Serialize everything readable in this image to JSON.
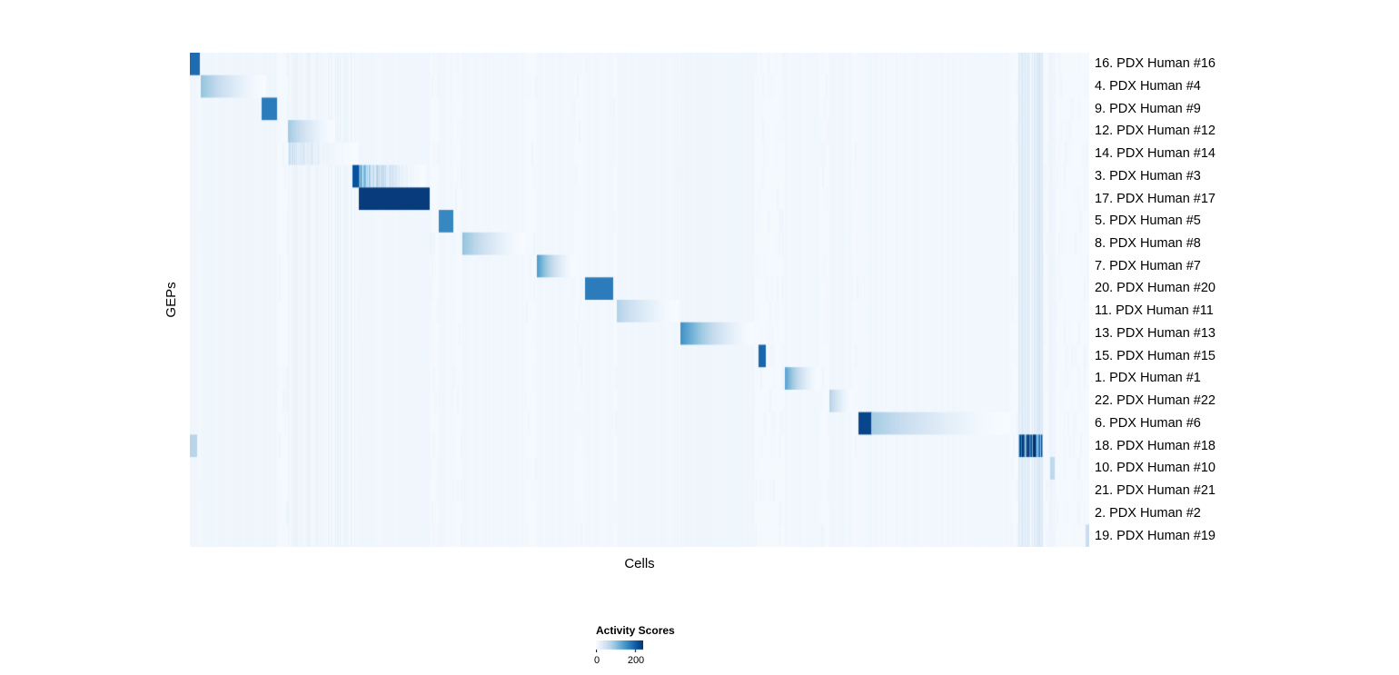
{
  "chart_data": {
    "type": "heatmap",
    "title": "",
    "xlabel": "Cells",
    "ylabel": "GEPs",
    "x_axis_note": "individual cells as columns, no per-column tick labels",
    "colormap": "Blues",
    "colormap_colors": [
      "#f7fbff",
      "#deebf7",
      "#c6dbef",
      "#9ecae1",
      "#6baed6",
      "#4292c6",
      "#2171b5",
      "#08519c",
      "#08306b"
    ],
    "legend": {
      "title": "Activity Scores",
      "color_scale_max": 240,
      "ticks": [
        {
          "value": 0,
          "label": "0"
        },
        {
          "value": 200,
          "label": "200"
        }
      ]
    },
    "rows": [
      {
        "label": "16. PDX Human #16",
        "blocks": [
          {
            "s": 0.0,
            "e": 0.011,
            "v": 185,
            "fade": false
          }
        ]
      },
      {
        "label": "4. PDX Human #4",
        "blocks": [
          {
            "s": 0.013,
            "e": 0.084,
            "v": 95,
            "fade": true
          }
        ]
      },
      {
        "label": "9. PDX Human #9",
        "blocks": [
          {
            "s": 0.08,
            "e": 0.096,
            "v": 170,
            "fade": false
          }
        ]
      },
      {
        "label": "12. PDX Human #12",
        "blocks": [
          {
            "s": 0.11,
            "e": 0.161,
            "v": 85,
            "fade": true
          }
        ]
      },
      {
        "label": "14. PDX Human #14",
        "blocks": [
          {
            "s": 0.11,
            "e": 0.186,
            "v": 45,
            "fade": true,
            "stripes": true
          }
        ]
      },
      {
        "label": "3. PDX Human #3",
        "blocks": [
          {
            "s": 0.181,
            "e": 0.187,
            "v": 210,
            "fade": false
          },
          {
            "s": 0.188,
            "e": 0.262,
            "v": 90,
            "fade": true,
            "stripes": true
          }
        ]
      },
      {
        "label": "17. PDX Human #17",
        "blocks": [
          {
            "s": 0.188,
            "e": 0.266,
            "v": 230,
            "fade": false
          }
        ]
      },
      {
        "label": "5. PDX Human #5",
        "blocks": [
          {
            "s": 0.277,
            "e": 0.292,
            "v": 160,
            "fade": false
          }
        ]
      },
      {
        "label": "8. PDX Human #8",
        "blocks": [
          {
            "s": 0.304,
            "e": 0.372,
            "v": 95,
            "fade": true
          }
        ]
      },
      {
        "label": "7. PDX Human #7",
        "blocks": [
          {
            "s": 0.386,
            "e": 0.427,
            "v": 140,
            "fade": true
          }
        ]
      },
      {
        "label": "20. PDX Human #20",
        "blocks": [
          {
            "s": 0.44,
            "e": 0.47,
            "v": 170,
            "fade": false
          }
        ]
      },
      {
        "label": "11. PDX Human #11",
        "blocks": [
          {
            "s": 0.475,
            "e": 0.543,
            "v": 75,
            "fade": true
          }
        ]
      },
      {
        "label": "13. PDX Human #13",
        "blocks": [
          {
            "s": 0.546,
            "e": 0.627,
            "v": 150,
            "fade": true
          }
        ]
      },
      {
        "label": "15. PDX Human #15",
        "blocks": [
          {
            "s": 0.633,
            "e": 0.64,
            "v": 190,
            "fade": false
          }
        ]
      },
      {
        "label": "1. PDX Human #1",
        "blocks": [
          {
            "s": 0.662,
            "e": 0.699,
            "v": 130,
            "fade": true
          }
        ]
      },
      {
        "label": "22. PDX Human #22",
        "blocks": [
          {
            "s": 0.712,
            "e": 0.736,
            "v": 70,
            "fade": true
          }
        ]
      },
      {
        "label": "6. PDX Human #6",
        "blocks": [
          {
            "s": 0.744,
            "e": 0.758,
            "v": 220,
            "fade": false
          },
          {
            "s": 0.758,
            "e": 0.912,
            "v": 85,
            "fade": true
          }
        ]
      },
      {
        "label": "18. PDX Human #18",
        "blocks": [
          {
            "s": 0.0,
            "e": 0.008,
            "v": 70,
            "fade": false
          },
          {
            "s": 0.922,
            "e": 0.948,
            "v": 185,
            "fade": false,
            "stripes": true
          }
        ]
      },
      {
        "label": "10. PDX Human #10",
        "blocks": [
          {
            "s": 0.957,
            "e": 0.961,
            "v": 65,
            "fade": false
          }
        ]
      },
      {
        "label": "21. PDX Human #21",
        "blocks": []
      },
      {
        "label": "2. PDX Human #2",
        "blocks": []
      },
      {
        "label": "19. PDX Human #19",
        "blocks": [
          {
            "s": 0.996,
            "e": 1.0,
            "v": 55,
            "fade": false
          }
        ]
      }
    ],
    "column_bands": [
      {
        "s": 0.0,
        "e": 0.011,
        "v": 8
      },
      {
        "s": 0.013,
        "e": 0.084,
        "v": 9
      },
      {
        "s": 0.08,
        "e": 0.096,
        "v": 10
      },
      {
        "s": 0.11,
        "e": 0.186,
        "v": 9,
        "stripes": true
      },
      {
        "s": 0.188,
        "e": 0.266,
        "v": 8
      },
      {
        "s": 0.277,
        "e": 0.292,
        "v": 7
      },
      {
        "s": 0.304,
        "e": 0.372,
        "v": 7
      },
      {
        "s": 0.386,
        "e": 0.427,
        "v": 7
      },
      {
        "s": 0.44,
        "e": 0.47,
        "v": 7
      },
      {
        "s": 0.475,
        "e": 0.543,
        "v": 8
      },
      {
        "s": 0.546,
        "e": 0.627,
        "v": 9
      },
      {
        "s": 0.662,
        "e": 0.699,
        "v": 7
      },
      {
        "s": 0.712,
        "e": 0.736,
        "v": 8
      },
      {
        "s": 0.744,
        "e": 0.912,
        "v": 7
      },
      {
        "s": 0.922,
        "e": 0.948,
        "v": 26,
        "stripes": true
      },
      {
        "s": 0.955,
        "e": 0.962,
        "v": 10
      }
    ]
  }
}
